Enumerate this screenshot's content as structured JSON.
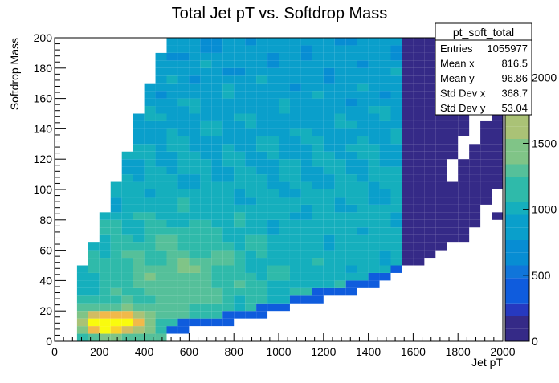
{
  "chart_data": {
    "type": "heatmap",
    "title": "Total Jet pT vs. Softdrop Mass",
    "xlabel": "Jet pT",
    "ylabel": "Softdrop Mass",
    "xlim": [
      0,
      2000
    ],
    "ylim": [
      0,
      200
    ],
    "x_ticks": [
      "0",
      "200",
      "400",
      "600",
      "800",
      "1000",
      "1200",
      "1400",
      "1600",
      "1800",
      "2000"
    ],
    "y_ticks": [
      "0",
      "20",
      "40",
      "60",
      "80",
      "100",
      "120",
      "140",
      "160",
      "180",
      "200"
    ],
    "colorbar_ticks": [
      "0",
      "500",
      "1000",
      "1500",
      "2000"
    ],
    "colorbar_range": [
      0,
      2300
    ],
    "bin_width_x": 50,
    "bin_width_y": 5,
    "grid": false,
    "stats": {
      "name": "pt_soft_total",
      "rows": [
        {
          "label": "Entries",
          "value": "1055977"
        },
        {
          "label": "Mean x",
          "value": "816.5"
        },
        {
          "label": "Mean y",
          "value": "96.86"
        },
        {
          "label": "Std Dev x",
          "value": "368.7"
        },
        {
          "label": "Std Dev y",
          "value": "53.04"
        }
      ]
    },
    "palette": [
      "#352a87",
      "#2639c0",
      "#0f5cdd",
      "#1075da",
      "#078dd3",
      "#0a9fcb",
      "#15afbd",
      "#2fbaaa",
      "#55c09a",
      "#80c487",
      "#aac276",
      "#d2bc62",
      "#f1b94a",
      "#f9d22c",
      "#f9fb0e"
    ]
  }
}
